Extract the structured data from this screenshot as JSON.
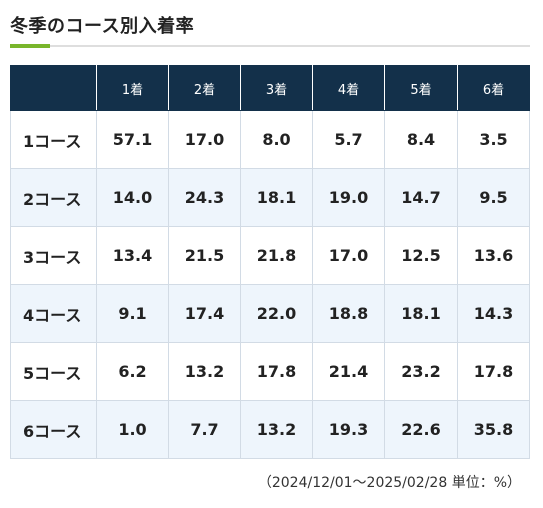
{
  "heading": {
    "title": "冬季のコース別入着率",
    "accent_color": "#79b62b"
  },
  "table": {
    "header_bg": "#13304a",
    "corner": "",
    "columns": [
      "1着",
      "2着",
      "3着",
      "4着",
      "5着",
      "6着"
    ],
    "rows": [
      {
        "course": "1コース",
        "values": [
          "57.1",
          "17.0",
          "8.0",
          "5.7",
          "8.4",
          "3.5"
        ]
      },
      {
        "course": "2コース",
        "values": [
          "14.0",
          "24.3",
          "18.1",
          "19.0",
          "14.7",
          "9.5"
        ]
      },
      {
        "course": "3コース",
        "values": [
          "13.4",
          "21.5",
          "21.8",
          "17.0",
          "12.5",
          "13.6"
        ]
      },
      {
        "course": "4コース",
        "values": [
          "9.1",
          "17.4",
          "22.0",
          "18.8",
          "18.1",
          "14.3"
        ]
      },
      {
        "course": "5コース",
        "values": [
          "6.2",
          "13.2",
          "17.8",
          "21.4",
          "23.2",
          "17.8"
        ]
      },
      {
        "course": "6コース",
        "values": [
          "1.0",
          "7.7",
          "13.2",
          "19.3",
          "22.6",
          "35.8"
        ]
      }
    ]
  },
  "note": "（2024/12/01～2025/02/28 単位：%）"
}
